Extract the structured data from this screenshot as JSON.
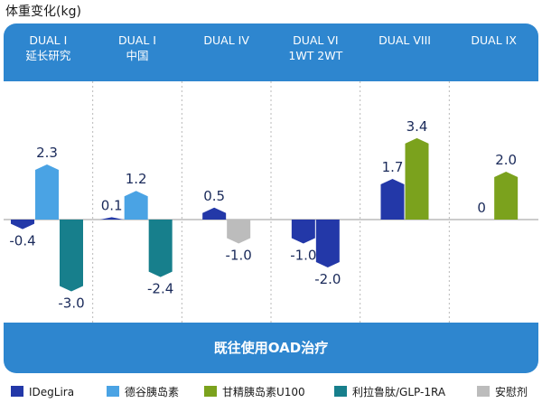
{
  "chart_data": {
    "type": "bar",
    "ylabel": "体重变化(kg)",
    "footer": "既往使用OAD治疗",
    "categories": [
      "DUAL I\n延长研究",
      "DUAL I\n中国",
      "DUAL IV",
      "DUAL VI\n1WT 2WT",
      "DUAL VIII",
      "DUAL IX"
    ],
    "groups": [
      {
        "bars": [
          {
            "series": "IDegLira",
            "value": -0.4,
            "label": "-0.4"
          },
          {
            "series": "德谷胰岛素",
            "value": 2.3,
            "label": "2.3"
          },
          {
            "series": "利拉鲁肽/GLP-1RA",
            "value": -3.0,
            "label": "-3.0"
          }
        ]
      },
      {
        "bars": [
          {
            "series": "IDegLira",
            "value": 0.1,
            "label": "0.1"
          },
          {
            "series": "德谷胰岛素",
            "value": 1.2,
            "label": "1.2"
          },
          {
            "series": "利拉鲁肽/GLP-1RA",
            "value": -2.4,
            "label": "-2.4"
          }
        ]
      },
      {
        "bars": [
          {
            "series": "IDegLira",
            "value": 0.5,
            "label": "0.5"
          },
          {
            "series": "安慰剂",
            "value": -1.0,
            "label": "-1.0"
          }
        ]
      },
      {
        "bars": [
          {
            "series": "IDegLira",
            "value": -1.0,
            "label": "-1.0"
          },
          {
            "series": "IDegLira",
            "value": -2.0,
            "label": "-2.0"
          }
        ]
      },
      {
        "bars": [
          {
            "series": "IDegLira",
            "value": 1.7,
            "label": "1.7"
          },
          {
            "series": "甘精胰岛素U100",
            "value": 3.4,
            "label": "3.4"
          }
        ]
      },
      {
        "bars": [
          {
            "series": "IDegLira",
            "value": 0,
            "label": "0"
          },
          {
            "series": "甘精胰岛素U100",
            "value": 2.0,
            "label": "2.0"
          }
        ]
      }
    ],
    "legend": [
      {
        "name": "IDegLira",
        "color": "#2338a8"
      },
      {
        "name": "德谷胰岛素",
        "color": "#4aa3e4"
      },
      {
        "name": "甘精胰岛素U100",
        "color": "#7ba21d"
      },
      {
        "name": "利拉鲁肽/GLP-1RA",
        "color": "#177f8c"
      },
      {
        "name": "安慰剂",
        "color": "#bcbcbc"
      }
    ],
    "ylim": [
      -3.8,
      4.3
    ],
    "grid": false,
    "legend_position": "bottom"
  }
}
